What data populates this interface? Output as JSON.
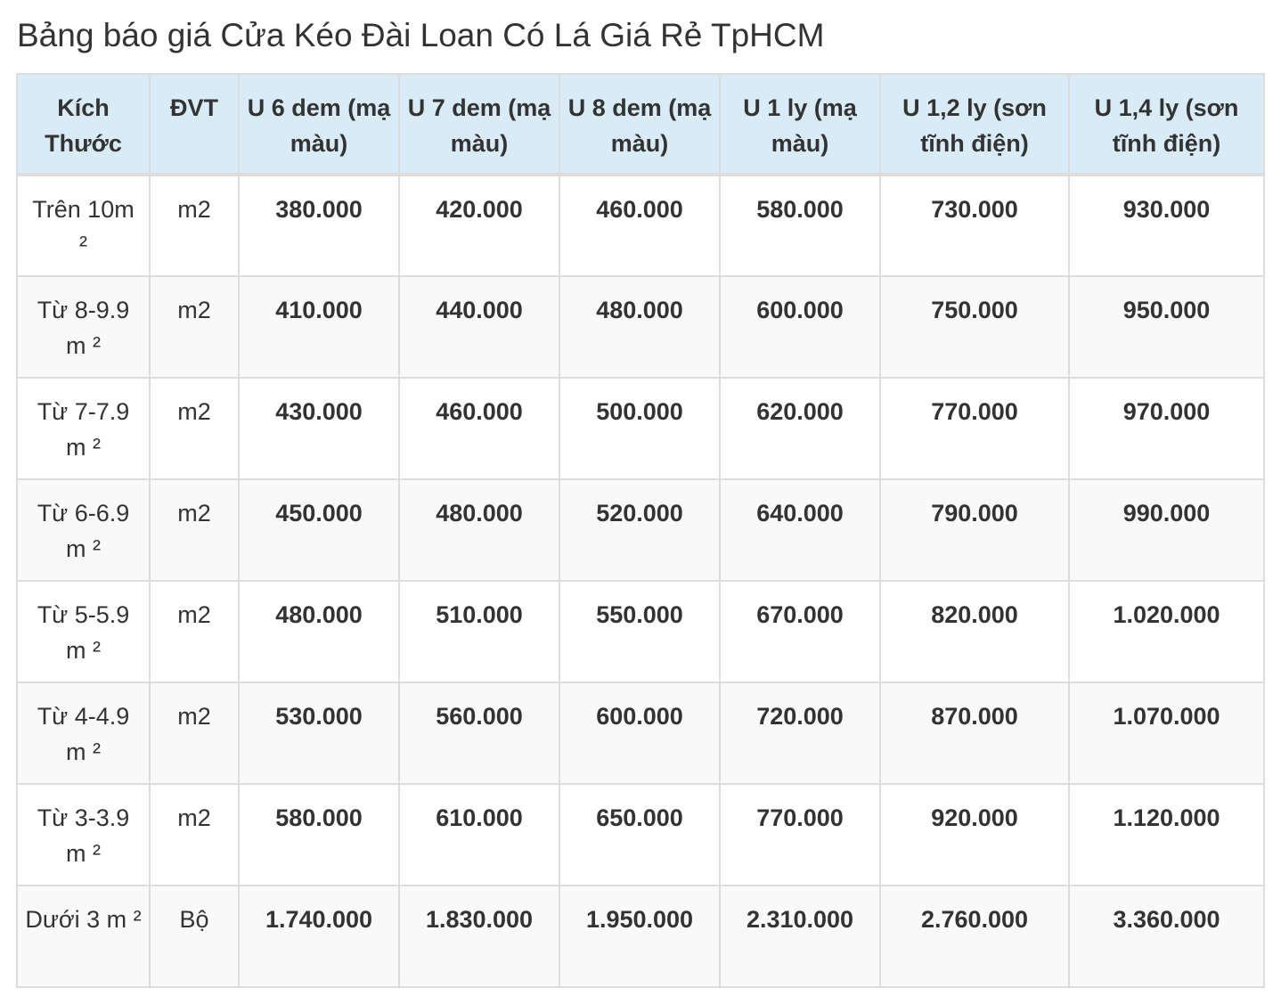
{
  "title": "Bảng báo giá Cửa Kéo Đài Loan Có Lá Giá Rẻ TpHCM",
  "table": {
    "headers": [
      "Kích Thước",
      "ĐVT",
      "U 6 dem (mạ màu)",
      "U 7 dem (mạ màu)",
      "U 8 dem (mạ màu)",
      "U 1 ly (mạ màu)",
      "U 1,2 ly (sơn tĩnh điện)",
      "U 1,4 ly (sơn tĩnh điện)"
    ],
    "rows": [
      [
        "Trên 10m ²",
        "m2",
        "380.000",
        "420.000",
        "460.000",
        "580.000",
        "730.000",
        "930.000"
      ],
      [
        "Từ 8-9.9 m ²",
        "m2",
        "410.000",
        "440.000",
        "480.000",
        "600.000",
        "750.000",
        "950.000"
      ],
      [
        "Từ 7-7.9 m ²",
        "m2",
        "430.000",
        "460.000",
        "500.000",
        "620.000",
        "770.000",
        "970.000"
      ],
      [
        "Từ 6-6.9 m ²",
        "m2",
        "450.000",
        "480.000",
        "520.000",
        "640.000",
        "790.000",
        "990.000"
      ],
      [
        "Từ 5-5.9 m ²",
        "m2",
        "480.000",
        "510.000",
        "550.000",
        "670.000",
        "820.000",
        "1.020.000"
      ],
      [
        "Từ 4-4.9 m ²",
        "m2",
        "530.000",
        "560.000",
        "600.000",
        "720.000",
        "870.000",
        "1.070.000"
      ],
      [
        "Từ 3-3.9 m ²",
        "m2",
        "580.000",
        "610.000",
        "650.000",
        "770.000",
        "920.000",
        "1.120.000"
      ],
      [
        "Dưới 3 m ²",
        "Bộ",
        "1.740.000",
        "1.830.000",
        "1.950.000",
        "2.310.000",
        "2.760.000",
        "3.360.000"
      ]
    ]
  },
  "colors": {
    "header_background": "#d9ebf6",
    "border": "#dddddd",
    "stripe": "#f9f9f9",
    "text": "#333333"
  }
}
